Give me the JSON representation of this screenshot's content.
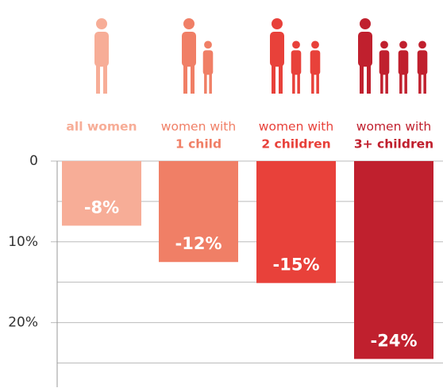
{
  "chart_data": {
    "type": "bar",
    "categories": [
      [
        "all women"
      ],
      [
        "women with",
        "1 child"
      ],
      [
        "women with",
        "2 children"
      ],
      [
        "women with",
        "3+ children"
      ]
    ],
    "values": [
      -8,
      -12.5,
      -15.1,
      -24.5
    ],
    "value_labels": [
      "-8%",
      "-12%",
      "-15%",
      "-24%"
    ],
    "colors": [
      "#f7ad97",
      "#f07f66",
      "#e8413a",
      "#c0202e"
    ],
    "ylim": [
      0,
      -28
    ],
    "yticks": [
      0,
      {
        "value": -10,
        "label": "10%"
      },
      {
        "value": -20,
        "label": "20%"
      }
    ],
    "minor_yticks": [
      -5,
      -15,
      -25
    ],
    "grid": true
  }
}
